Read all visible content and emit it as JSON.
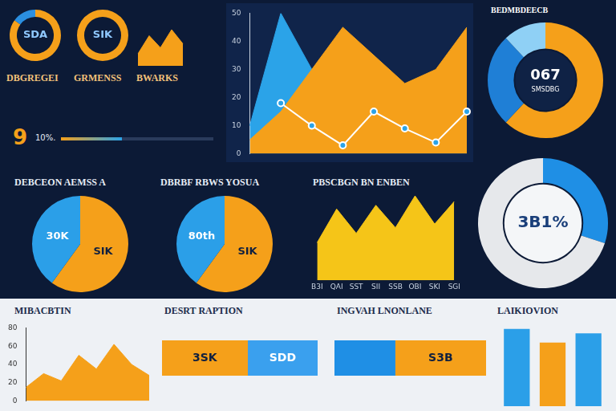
{
  "chart_data": [
    {
      "type": "doughnut",
      "title": "DBGREGEI",
      "annotation": "SDA",
      "values": [
        85,
        15
      ],
      "colors": [
        "#f5a01a",
        "#2b8fe0"
      ]
    },
    {
      "type": "doughnut",
      "title": "GRMENSS",
      "annotation": "SIK",
      "values": [
        100
      ],
      "colors": [
        "#f5a01a"
      ]
    },
    {
      "type": "area",
      "title": "BWARKS",
      "categories": [
        null,
        null,
        null,
        null,
        null
      ],
      "values": [
        30,
        75,
        45,
        90,
        55
      ],
      "color": "#f5a01a",
      "tick_labels": false,
      "grid": false
    },
    {
      "type": "line",
      "categories": [
        null,
        null,
        null,
        null,
        null,
        null,
        null,
        null
      ],
      "series": [
        {
          "type": "line",
          "color": "#ffffff",
          "marker": "circle",
          "values": [
            null,
            18,
            10,
            3,
            15,
            9,
            4,
            15
          ]
        },
        {
          "type": "area",
          "color": "#f5a01a",
          "values": [
            5,
            15,
            30,
            45,
            35,
            25,
            30,
            45
          ]
        },
        {
          "type": "area",
          "color": "#2ba3e8",
          "values": [
            10,
            50,
            30,
            40,
            35,
            22,
            28,
            37
          ]
        }
      ],
      "ylim": [
        0,
        50
      ],
      "yticks": [
        0,
        10,
        20,
        30,
        40,
        50
      ],
      "tick_labels": "y",
      "grid": false
    },
    {
      "type": "doughnut",
      "title": "BEDMBDEECB",
      "annotation": "067",
      "subtitle": "SMSDBG",
      "values": [
        62,
        26,
        12
      ],
      "colors": [
        "#f5a01a",
        "#1f7fd6",
        "#8fd0f5"
      ]
    },
    {
      "type": "pie",
      "title": "DEBCEON AEMSS A",
      "values": [
        60,
        40
      ],
      "colors": [
        "#f5a01a",
        "#2b9fe8"
      ],
      "annotations": [
        "SIK",
        "30K"
      ]
    },
    {
      "type": "pie",
      "title": "DBRBF RBWS YOSUA",
      "values": [
        60,
        40
      ],
      "colors": [
        "#f5a01a",
        "#2b9fe8"
      ],
      "annotations": [
        "SIK",
        "80th"
      ]
    },
    {
      "type": "area",
      "title": "PBSCBGN BN ENBEN",
      "categories": [
        "B3I",
        "QAI",
        "SST",
        "SII",
        "SSB",
        "OBI",
        "SKI",
        "SGI"
      ],
      "values": [
        20,
        38,
        25,
        40,
        28,
        45,
        30,
        42
      ],
      "color": "#f5c518",
      "tick_labels": "x",
      "grid": false
    },
    {
      "type": "doughnut",
      "annotation": "3B1%",
      "values": [
        30,
        70
      ],
      "colors": [
        "#1f8fe5",
        "#e6e8eb"
      ]
    },
    {
      "type": "area",
      "title": "MIBACBTIN",
      "categories": [
        null,
        null,
        null,
        null,
        null,
        null,
        null,
        null
      ],
      "values": [
        15,
        30,
        22,
        50,
        35,
        62,
        40,
        28
      ],
      "color": "#f5a01a",
      "ylim": [
        0,
        80
      ],
      "yticks": [
        0,
        20,
        40,
        60,
        80
      ],
      "tick_labels": "y",
      "grid": false
    },
    {
      "type": "bar",
      "title": "DESRT RAPTION",
      "orientation": "horizontal",
      "stacked": true,
      "categories": [
        null
      ],
      "series": [
        {
          "name": "3SK",
          "color": "#f5a01a",
          "values": [
            55
          ]
        },
        {
          "name": "SDD",
          "color": "#3aa0ee",
          "values": [
            45
          ]
        }
      ],
      "tick_labels": false,
      "grid": false
    },
    {
      "type": "bar",
      "title": "INGVAH LNONLANE",
      "orientation": "horizontal",
      "stacked": true,
      "categories": [
        null
      ],
      "series": [
        {
          "color": "#1f8fe5",
          "values": [
            40
          ]
        },
        {
          "name": "S3B",
          "color": "#f5a01a",
          "values": [
            60
          ]
        }
      ],
      "tick_labels": false,
      "grid": false
    },
    {
      "type": "bar",
      "title": "LAIKIOVION",
      "categories": [
        null,
        null,
        null
      ],
      "values": [
        85,
        70,
        80
      ],
      "colors": [
        "#2b9fe8",
        "#f5a01a",
        "#2b9fe8"
      ],
      "tick_labels": false,
      "grid": false
    }
  ],
  "kpi": {
    "value": 9,
    "label": "10%.",
    "progress": 40
  }
}
